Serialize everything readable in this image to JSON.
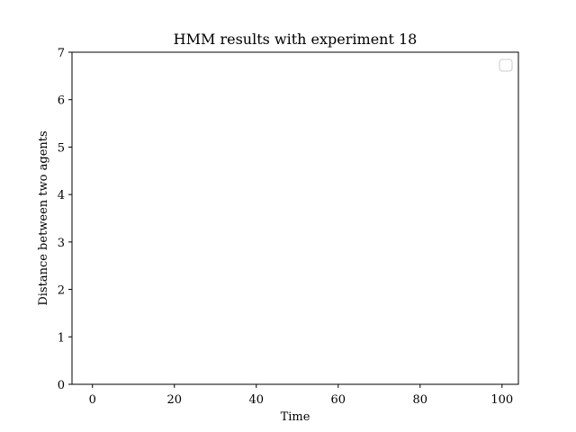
{
  "chart_data": {
    "type": "line",
    "title": "HMM results with experiment 18",
    "xlabel": "Time",
    "ylabel": "Distance between two agents",
    "xlim": [
      -5,
      104
    ],
    "ylim": [
      0,
      7
    ],
    "xticks": [
      0,
      20,
      40,
      60,
      80,
      100
    ],
    "yticks": [
      0,
      1,
      2,
      3,
      4,
      5,
      6,
      7
    ],
    "series": [],
    "grid": false,
    "legend": "top-right",
    "colors": {
      "axis": "#000000",
      "legend_border": "#cccccc",
      "background": "#ffffff"
    }
  }
}
